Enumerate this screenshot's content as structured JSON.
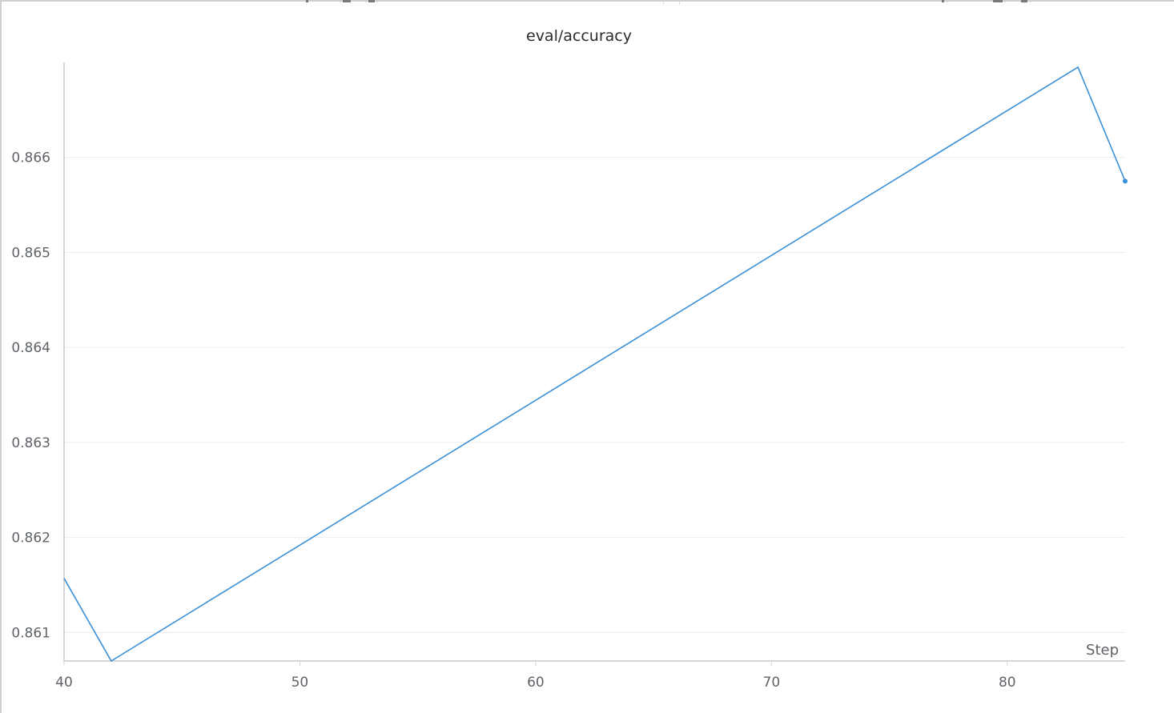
{
  "panel": {
    "title": "eval/accuracy"
  },
  "colors": {
    "series": "#3b8fd6",
    "grid": "#ececec",
    "axis": "#d6d6d6",
    "tick_text": "#5f6368"
  },
  "chart_data": {
    "type": "line",
    "title": "eval/accuracy",
    "xlabel": "Step",
    "ylabel": "",
    "xlim": [
      40,
      85
    ],
    "ylim": [
      0.8607,
      0.867
    ],
    "xticks": [
      "40",
      "50",
      "60",
      "70",
      "80"
    ],
    "yticks": [
      "0.861",
      "0.862",
      "0.863",
      "0.864",
      "0.865",
      "0.866"
    ],
    "grid": true,
    "legend": "none",
    "series": [
      {
        "x": [
          40,
          42,
          83,
          85
        ],
        "y": [
          0.86157,
          0.8607,
          0.86695,
          0.86575
        ]
      }
    ]
  }
}
